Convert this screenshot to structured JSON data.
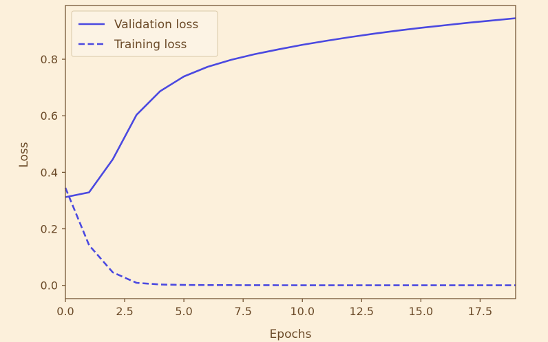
{
  "chart_data": {
    "type": "line",
    "title": "",
    "xlabel": "Epochs",
    "ylabel": "Loss",
    "xlim": [
      0,
      19
    ],
    "ylim": [
      -0.047,
      0.99
    ],
    "x_ticks": [
      0.0,
      2.5,
      5.0,
      7.5,
      10.0,
      12.5,
      15.0,
      17.5
    ],
    "x_tick_labels": [
      "0.0",
      "2.5",
      "5.0",
      "7.5",
      "10.0",
      "12.5",
      "15.0",
      "17.5"
    ],
    "y_ticks": [
      0.0,
      0.2,
      0.4,
      0.6,
      0.8
    ],
    "y_tick_labels": [
      "0.0",
      "0.2",
      "0.4",
      "0.6",
      "0.8"
    ],
    "grid": false,
    "legend_position": "top-left",
    "x": [
      0,
      1,
      2,
      3,
      4,
      5,
      6,
      7,
      8,
      9,
      10,
      11,
      12,
      13,
      14,
      15,
      16,
      17,
      18,
      19
    ],
    "series": [
      {
        "name": "Validation loss",
        "style": "solid",
        "color": "#4b49e0",
        "values": [
          0.312,
          0.329,
          0.446,
          0.603,
          0.687,
          0.739,
          0.773,
          0.798,
          0.818,
          0.835,
          0.851,
          0.865,
          0.878,
          0.89,
          0.901,
          0.911,
          0.92,
          0.929,
          0.937,
          0.945
        ]
      },
      {
        "name": "Training loss",
        "style": "dashed",
        "color": "#4b49e0",
        "values": [
          0.345,
          0.142,
          0.046,
          0.009,
          0.003,
          0.0015,
          0.001,
          0.0008,
          0.0006,
          0.0005,
          0.0004,
          0.0004,
          0.0003,
          0.0003,
          0.0003,
          0.0002,
          0.0002,
          0.0002,
          0.0002,
          0.0002
        ]
      }
    ],
    "colors": {
      "background": "#fcf0db",
      "axes": "#6b4a28",
      "legend_bg": "#fcf3e4",
      "legend_border": "#d9c8a8"
    }
  }
}
